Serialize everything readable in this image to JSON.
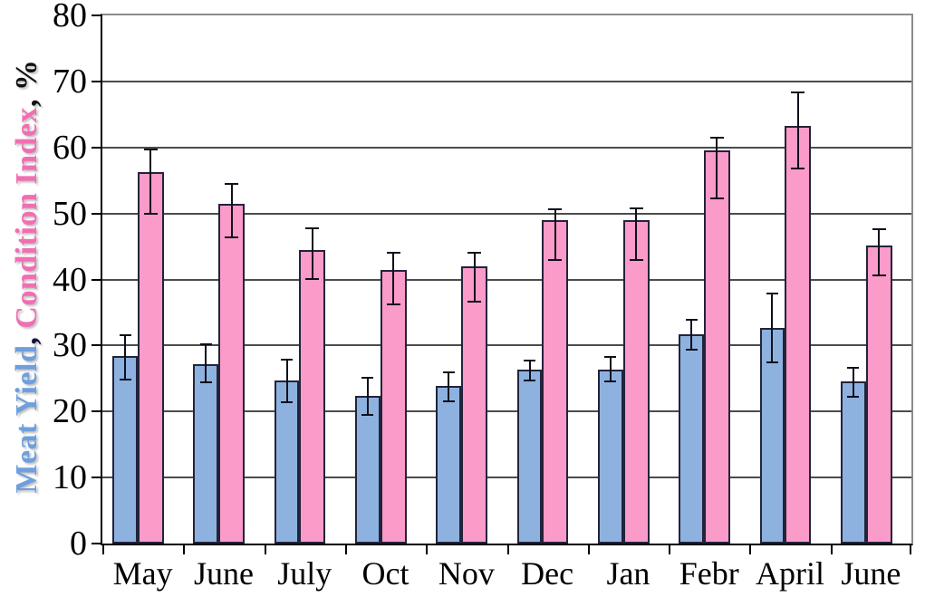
{
  "figure": {
    "background": "#ffffff"
  },
  "chart_data": {
    "type": "bar",
    "title": "",
    "xlabel": "",
    "ylabel": "Meat Yield, Condition Index, %",
    "ylabel_parts": [
      {
        "text": "Meat Yield",
        "color": "#6f9fdc"
      },
      {
        "text": ", ",
        "color": "#16163a"
      },
      {
        "text": "Condition Index",
        "color": "#f06fb2"
      },
      {
        "text": ", %",
        "color": "#111111"
      }
    ],
    "categories": [
      "May",
      "June",
      "July",
      "Oct",
      "Nov",
      "Dec",
      "Jan",
      "Febr",
      "April",
      "June"
    ],
    "ylim": [
      0,
      80
    ],
    "y_ticks": [
      0,
      10,
      20,
      30,
      40,
      50,
      60,
      70,
      80
    ],
    "grid": true,
    "legend_position": "none",
    "error_bars": true,
    "series": [
      {
        "name": "Meat Yield",
        "color": "#8eb2e0",
        "border_color": "#23233a",
        "values": [
          28.4,
          27.2,
          24.7,
          22.3,
          23.9,
          26.3,
          26.3,
          31.7,
          32.6,
          24.5
        ],
        "err_low": [
          24.8,
          24.4,
          21.4,
          19.5,
          21.6,
          24.7,
          24.5,
          29.4,
          27.5,
          22.2
        ],
        "err_high": [
          31.5,
          30.2,
          27.9,
          25.1,
          25.9,
          27.7,
          28.2,
          33.9,
          37.9,
          26.6
        ]
      },
      {
        "name": "Condition Index",
        "color": "#fb9bca",
        "border_color": "#23233a",
        "values": [
          56.3,
          51.4,
          44.5,
          41.4,
          42.0,
          49.0,
          49.0,
          59.5,
          63.3,
          45.2
        ],
        "err_low": [
          49.9,
          46.4,
          40.1,
          36.2,
          36.6,
          43.0,
          42.9,
          52.3,
          56.8,
          40.6
        ],
        "err_high": [
          59.7,
          54.5,
          47.7,
          44.1,
          44.0,
          50.6,
          50.8,
          61.5,
          68.4,
          47.6
        ]
      }
    ]
  }
}
